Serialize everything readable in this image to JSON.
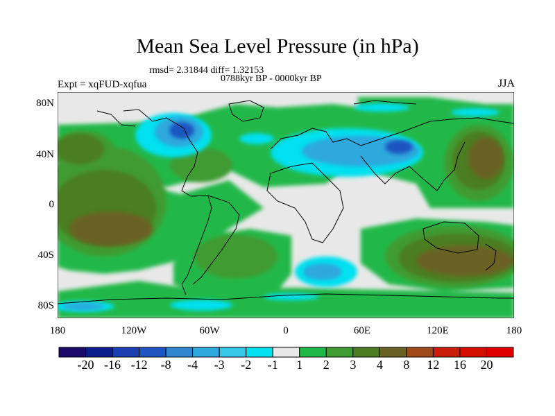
{
  "title": "Mean Sea Level Pressure (in hPa)",
  "stats": "rmsd= 2.31844 diff= 1.32153",
  "period": "0788kyr BP - 0000kyr BP",
  "experiment": "Expt = xqFUD-xqfua",
  "season": "JJA",
  "lat_labels": [
    "80N",
    "40N",
    "0",
    "40S",
    "80S"
  ],
  "lon_labels": [
    "180",
    "120W",
    "60W",
    "0",
    "60E",
    "120E",
    "180"
  ],
  "colorbar": {
    "labels": [
      "-20",
      "-16",
      "-12",
      "-8",
      "-4",
      "-3",
      "-2",
      "-1",
      "1",
      "2",
      "3",
      "4",
      "8",
      "12",
      "16",
      "20"
    ],
    "colors": [
      "#1c0a6b",
      "#0a1f8c",
      "#1a3fb0",
      "#1e55c0",
      "#2f86cf",
      "#2fa8dd",
      "#35c6e8",
      "#00e0ee",
      "#e8e8e8",
      "#22b84a",
      "#3f9b33",
      "#4b7d24",
      "#6a6222",
      "#a04a1a",
      "#c81e0a",
      "#d31000",
      "#e00000"
    ]
  }
}
